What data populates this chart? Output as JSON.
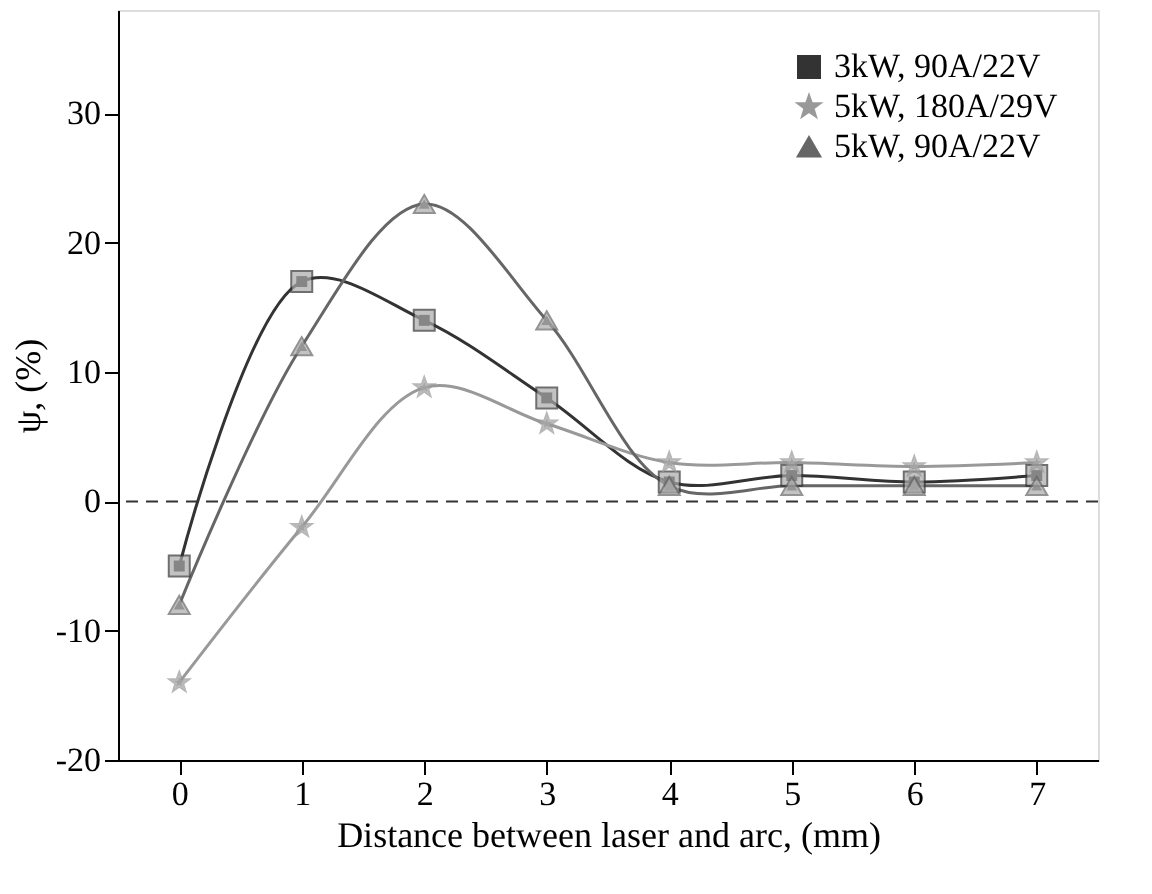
{
  "chart_data": {
    "type": "line",
    "xlabel": "Distance between laser and arc,  (mm)",
    "ylabel": "ψ,  (%)",
    "x": [
      0,
      1,
      2,
      3,
      4,
      5,
      6,
      7
    ],
    "series": [
      {
        "name": "3kW, 90A/22V",
        "color": "#333333",
        "marker": "square",
        "values": [
          -5,
          17,
          14,
          8,
          1.5,
          2,
          1.5,
          2
        ]
      },
      {
        "name": "5kW, 180A/29V",
        "color": "#999999",
        "marker": "star",
        "values": [
          -14,
          -2,
          8.8,
          6,
          3,
          3,
          2.7,
          3
        ]
      },
      {
        "name": "5kW, 90A/22V",
        "color": "#666666",
        "marker": "triangle",
        "values": [
          -8,
          12,
          23,
          14,
          1.2,
          1.2,
          1.2,
          1.2
        ]
      }
    ],
    "xlim": [
      -0.5,
      7.5
    ],
    "xticks": [
      0,
      1,
      2,
      3,
      4,
      5,
      6,
      7
    ],
    "ylim": [
      -20,
      38
    ],
    "yticks": [
      -20,
      -10,
      0,
      10,
      20,
      30
    ],
    "ref_lines": [
      {
        "axis": "y",
        "value": 0,
        "line_style": "dashed",
        "color": "#333333"
      }
    ],
    "grid": false,
    "legend": "top right",
    "line_style": "solid"
  }
}
